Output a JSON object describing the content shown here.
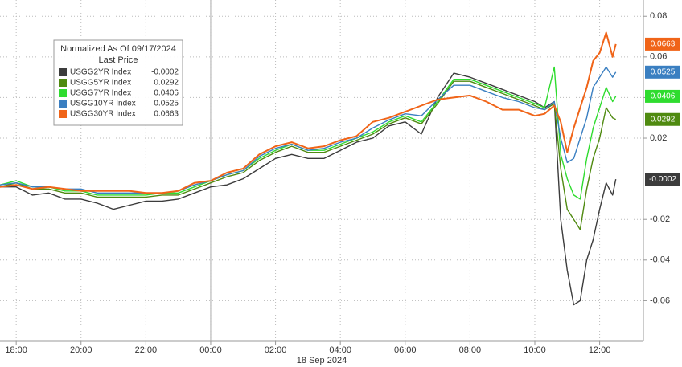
{
  "chart_data": {
    "type": "line",
    "legend_title": "Normalized As Of 09/17/2024",
    "legend_subtitle": "Last Price",
    "x_label": "18 Sep 2024",
    "x": [
      -0.5,
      0,
      0.5,
      1,
      1.5,
      2,
      2.5,
      3,
      3.5,
      4,
      4.5,
      5,
      5.5,
      6,
      6.5,
      7,
      7.5,
      8,
      8.5,
      9,
      9.5,
      10,
      10.5,
      11,
      11.5,
      12,
      12.5,
      13,
      13.5,
      14,
      14.5,
      15,
      15.5,
      16,
      16.3,
      16.6,
      16.8,
      17,
      17.2,
      17.4,
      17.6,
      17.8,
      18,
      18.2,
      18.4,
      18.5
    ],
    "xlim": [
      -0.5,
      19.35
    ],
    "xticks": [
      {
        "value": 0,
        "label": "18:00"
      },
      {
        "value": 2,
        "label": "20:00"
      },
      {
        "value": 4,
        "label": "22:00"
      },
      {
        "value": 6,
        "label": "00:00"
      },
      {
        "value": 8,
        "label": "02:00"
      },
      {
        "value": 10,
        "label": "04:00"
      },
      {
        "value": 12,
        "label": "06:00"
      },
      {
        "value": 14,
        "label": "08:00"
      },
      {
        "value": 16,
        "label": "10:00"
      },
      {
        "value": 18,
        "label": "12:00"
      }
    ],
    "ylim": [
      -0.08,
      0.088
    ],
    "yticks": [
      0.08,
      0.06,
      0.04,
      0.02,
      -0.02,
      -0.04,
      -0.06
    ],
    "grid": true,
    "series": [
      {
        "name": "USGG2YR Index",
        "color": "#3c3c3c",
        "values": [
          -0.004,
          -0.004,
          -0.008,
          -0.007,
          -0.01,
          -0.01,
          -0.012,
          -0.015,
          -0.013,
          -0.011,
          -0.011,
          -0.01,
          -0.007,
          -0.004,
          -0.003,
          0,
          0.005,
          0.01,
          0.012,
          0.01,
          0.01,
          0.014,
          0.018,
          0.02,
          0.026,
          0.028,
          0.022,
          0.04,
          0.052,
          0.05,
          0.047,
          0.044,
          0.041,
          0.038,
          0.035,
          0.038,
          -0.02,
          -0.045,
          -0.062,
          -0.06,
          -0.04,
          -0.03,
          -0.015,
          -0.002,
          -0.008,
          -0.0002
        ]
      },
      {
        "name": "USGG5YR Index",
        "color": "#4f8a10",
        "values": [
          -0.004,
          -0.002,
          -0.005,
          -0.005,
          -0.007,
          -0.007,
          -0.009,
          -0.009,
          -0.009,
          -0.009,
          -0.008,
          -0.008,
          -0.005,
          -0.002,
          0.001,
          0.003,
          0.009,
          0.013,
          0.016,
          0.013,
          0.013,
          0.016,
          0.019,
          0.022,
          0.027,
          0.03,
          0.027,
          0.037,
          0.048,
          0.048,
          0.045,
          0.042,
          0.039,
          0.036,
          0.034,
          0.037,
          0.005,
          -0.015,
          -0.02,
          -0.025,
          -0.005,
          0.01,
          0.02,
          0.035,
          0.03,
          0.0292
        ]
      },
      {
        "name": "USGG7YR Index",
        "color": "#2fdc2f",
        "values": [
          -0.003,
          -0.001,
          -0.004,
          -0.004,
          -0.006,
          -0.006,
          -0.008,
          -0.008,
          -0.008,
          -0.008,
          -0.007,
          -0.007,
          -0.004,
          -0.001,
          0.002,
          0.004,
          0.01,
          0.014,
          0.017,
          0.014,
          0.014,
          0.017,
          0.02,
          0.023,
          0.028,
          0.031,
          0.028,
          0.038,
          0.049,
          0.049,
          0.046,
          0.043,
          0.04,
          0.037,
          0.035,
          0.055,
          0.012,
          0,
          -0.008,
          -0.01,
          0.01,
          0.025,
          0.035,
          0.045,
          0.038,
          0.0406
        ]
      },
      {
        "name": "USGG10YR Index",
        "color": "#3a7fc1",
        "values": [
          -0.003,
          -0.002,
          -0.004,
          -0.004,
          -0.005,
          -0.005,
          -0.007,
          -0.007,
          -0.007,
          -0.007,
          -0.007,
          -0.006,
          -0.003,
          -0.001,
          0.002,
          0.004,
          0.011,
          0.015,
          0.017,
          0.014,
          0.015,
          0.018,
          0.02,
          0.025,
          0.029,
          0.032,
          0.031,
          0.039,
          0.046,
          0.046,
          0.043,
          0.04,
          0.038,
          0.035,
          0.034,
          0.038,
          0.02,
          0.008,
          0.01,
          0.02,
          0.03,
          0.045,
          0.05,
          0.055,
          0.05,
          0.0525
        ]
      },
      {
        "name": "USGG30YR Index",
        "color": "#f06418",
        "values": [
          -0.004,
          -0.003,
          -0.005,
          -0.004,
          -0.005,
          -0.006,
          -0.006,
          -0.006,
          -0.006,
          -0.007,
          -0.007,
          -0.006,
          -0.002,
          -0.001,
          0.003,
          0.005,
          0.012,
          0.016,
          0.018,
          0.015,
          0.016,
          0.019,
          0.021,
          0.028,
          0.03,
          0.033,
          0.036,
          0.039,
          0.04,
          0.041,
          0.038,
          0.034,
          0.034,
          0.031,
          0.032,
          0.036,
          0.028,
          0.013,
          0.025,
          0.035,
          0.045,
          0.058,
          0.062,
          0.072,
          0.06,
          0.0663
        ]
      }
    ]
  }
}
